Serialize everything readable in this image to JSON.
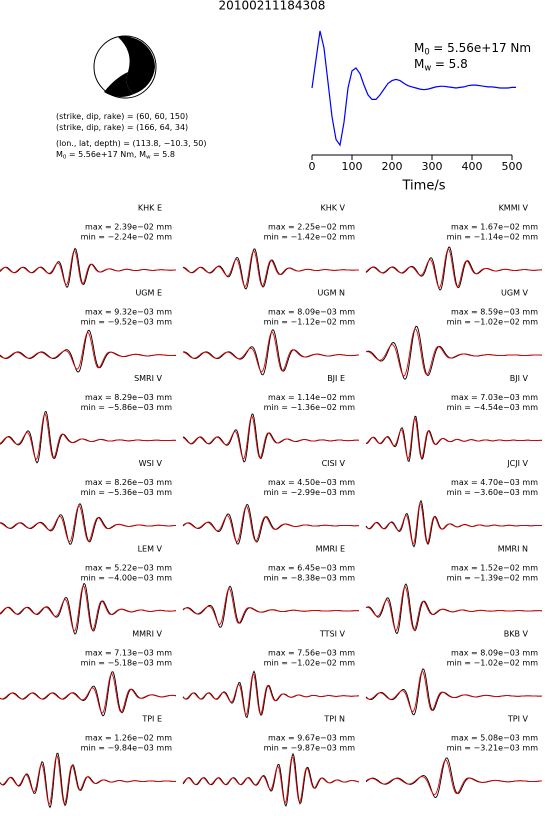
{
  "title": "20100211184308",
  "focal_mechanism": {
    "lines": [
      [
        "(strike, dip, rake) = (60, 60, 150)"
      ],
      [
        "(strike, dip, rake) = (166, 64, 34)"
      ],
      [
        "(lon., lat, depth) = (113.8, −10.3, 50)"
      ],
      [
        "M",
        "0",
        "= 5.56e+17 Nm, M",
        "w",
        "= 5.8"
      ]
    ]
  },
  "chart_data": {
    "type": "line",
    "x_label": "Time/s",
    "annotations": [
      [
        "M",
        "0",
        "= 5.56e+17 Nm"
      ],
      [
        "M",
        "w",
        "= 5.8"
      ]
    ],
    "x": [
      0,
      10,
      20,
      30,
      40,
      50,
      60,
      70,
      80,
      90,
      100,
      110,
      120,
      130,
      140,
      150,
      160,
      170,
      180,
      190,
      200,
      210,
      220,
      230,
      240,
      250,
      260,
      270,
      280,
      290,
      300,
      310,
      320,
      330,
      340,
      350,
      360,
      370,
      380,
      390,
      400,
      410,
      420,
      430,
      440,
      450,
      460,
      470,
      480,
      490,
      500,
      510
    ],
    "values": [
      0,
      0.5,
      1.0,
      0.7,
      0.1,
      -0.5,
      -0.9,
      -1.0,
      -0.6,
      0,
      0.3,
      0.35,
      0.25,
      0.05,
      -0.12,
      -0.2,
      -0.2,
      -0.12,
      -0.02,
      0.08,
      0.13,
      0.15,
      0.13,
      0.08,
      0.04,
      0.02,
      0,
      -0.02,
      -0.03,
      -0.02,
      0,
      0.02,
      0.03,
      0.03,
      0.02,
      0.01,
      0,
      0.01,
      0.02,
      0.04,
      0.05,
      0.05,
      0.04,
      0.03,
      0.02,
      0.02,
      0.01,
      0,
      0,
      0,
      0.01,
      0.01
    ],
    "color": "#0000ff",
    "xlim": [
      0,
      510
    ],
    "ylim": [
      -1.05,
      1.05
    ],
    "xticks": [
      0,
      100,
      200,
      300,
      400,
      500
    ]
  },
  "stations": [
    {
      "name": "KHK E",
      "max": "max = 2.39e−02 mm",
      "min": "min = −2.24e−02 mm"
    },
    {
      "name": "KHK V",
      "max": "max = 2.25e−02 mm",
      "min": "min = −1.42e−02 mm"
    },
    {
      "name": "KMMI V",
      "max": "max = 1.67e−02 mm",
      "min": "min = −1.14e−02 mm"
    },
    {
      "name": "UGM E",
      "max": "max = 9.32e−03 mm",
      "min": "min = −9.52e−03 mm"
    },
    {
      "name": "UGM N",
      "max": "max = 8.09e−03 mm",
      "min": "min = −1.12e−02 mm"
    },
    {
      "name": "UGM V",
      "max": "max = 8.59e−03 mm",
      "min": "min = −1.02e−02 mm"
    },
    {
      "name": "SMRI V",
      "max": "max = 8.29e−03 mm",
      "min": "min = −5.86e−03 mm"
    },
    {
      "name": "BJI E",
      "max": "max = 1.14e−02 mm",
      "min": "min = −1.36e−02 mm"
    },
    {
      "name": "BJI V",
      "max": "max = 7.03e−03 mm",
      "min": "min = −4.54e−03 mm"
    },
    {
      "name": "WSI V",
      "max": "max = 8.26e−03 mm",
      "min": "min = −5.36e−03 mm"
    },
    {
      "name": "CISI V",
      "max": "max = 4.50e−03 mm",
      "min": "min = −2.99e−03 mm"
    },
    {
      "name": "JCJI V",
      "max": "max = 4.70e−03 mm",
      "min": "min = −3.60e−03 mm"
    },
    {
      "name": "LEM V",
      "max": "max = 5.22e−03 mm",
      "min": "min = −4.00e−03 mm"
    },
    {
      "name": "MMRI E",
      "max": "max = 6.45e−03 mm",
      "min": "min = −8.38e−03 mm"
    },
    {
      "name": "MMRI N",
      "max": "max = 1.52e−02 mm",
      "min": "min = −1.39e−02 mm"
    },
    {
      "name": "MMRI V",
      "max": "max = 7.13e−03 mm",
      "min": "min = −5.18e−03 mm"
    },
    {
      "name": "TTSI V",
      "max": "max = 7.56e−03 mm",
      "min": "min = −1.02e−02 mm"
    },
    {
      "name": "BKB V",
      "max": "max = 8.09e−03 mm",
      "min": "min = −1.02e−02 mm"
    },
    {
      "name": "TPI E",
      "max": "max = 1.26e−02 mm",
      "min": "min = −9.84e−03 mm"
    },
    {
      "name": "TPI N",
      "max": "max = 9.67e−03 mm",
      "min": "min = −9.87e−03 mm"
    },
    {
      "name": "TPI V",
      "max": "max = 5.08e−03 mm",
      "min": "min = −3.21e−03 mm"
    }
  ]
}
